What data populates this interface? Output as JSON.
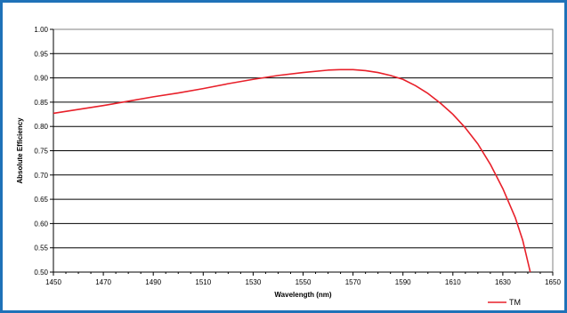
{
  "chart_data": {
    "type": "line",
    "title": "",
    "xlabel": "Wavelength (nm)",
    "ylabel": "Absolute Efficiency",
    "xlim": [
      1450,
      1650
    ],
    "ylim": [
      0.5,
      1.0
    ],
    "x_ticks": [
      1450,
      1470,
      1490,
      1510,
      1530,
      1550,
      1570,
      1590,
      1610,
      1630,
      1650
    ],
    "y_ticks": [
      "0.50",
      "0.55",
      "0.60",
      "0.65",
      "0.70",
      "0.75",
      "0.80",
      "0.85",
      "0.90",
      "0.95",
      "1.00"
    ],
    "grid": true,
    "legend_position": "bottom-right",
    "series": [
      {
        "name": "TM",
        "color": "#e8202a",
        "x": [
          1450,
          1460,
          1470,
          1480,
          1490,
          1500,
          1510,
          1520,
          1530,
          1540,
          1550,
          1560,
          1565,
          1570,
          1575,
          1580,
          1585,
          1590,
          1595,
          1600,
          1605,
          1610,
          1615,
          1620,
          1625,
          1630,
          1635,
          1638,
          1641
        ],
        "y": [
          0.827,
          0.835,
          0.843,
          0.852,
          0.861,
          0.869,
          0.878,
          0.888,
          0.897,
          0.905,
          0.911,
          0.916,
          0.917,
          0.917,
          0.915,
          0.911,
          0.905,
          0.897,
          0.884,
          0.868,
          0.848,
          0.825,
          0.797,
          0.764,
          0.722,
          0.672,
          0.612,
          0.565,
          0.5
        ]
      }
    ]
  }
}
